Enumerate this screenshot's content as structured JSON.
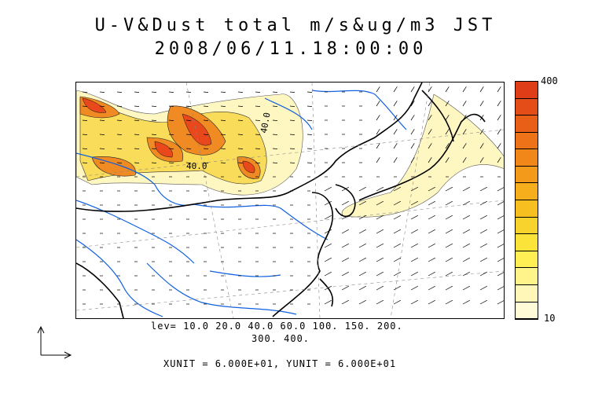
{
  "header": {
    "title": "U-V&Dust total m/s&ug/m3 JST",
    "datetime": "2008/06/11.18:00:00"
  },
  "legend": {
    "levels_line1": "lev= 10.0 20.0 40.0 60.0 100. 150. 200.",
    "levels_line2": "300. 400.",
    "units": "XUNIT = 6.000E+01, YUNIT = 6.000E+01"
  },
  "map": {
    "contour_labels": [
      "40.0",
      "40.0"
    ]
  },
  "colorbar": {
    "max_label": "400",
    "min_label": "10",
    "colors": [
      "#fffbd7",
      "#fff7b8",
      "#fff48a",
      "#ffef55",
      "#fbe33a",
      "#f8d22d",
      "#f7c020",
      "#f6ae1c",
      "#f49a1a",
      "#f18718",
      "#ee7318",
      "#ea5f18",
      "#e44d17",
      "#de3d17"
    ]
  },
  "colors": {
    "dust_light": "#fff7c2",
    "dust_mid": "#f9dc5a",
    "dust_high": "#f08a22",
    "dust_peak": "#e8481b",
    "rivers": "#1060e0",
    "coast": "#000000"
  }
}
